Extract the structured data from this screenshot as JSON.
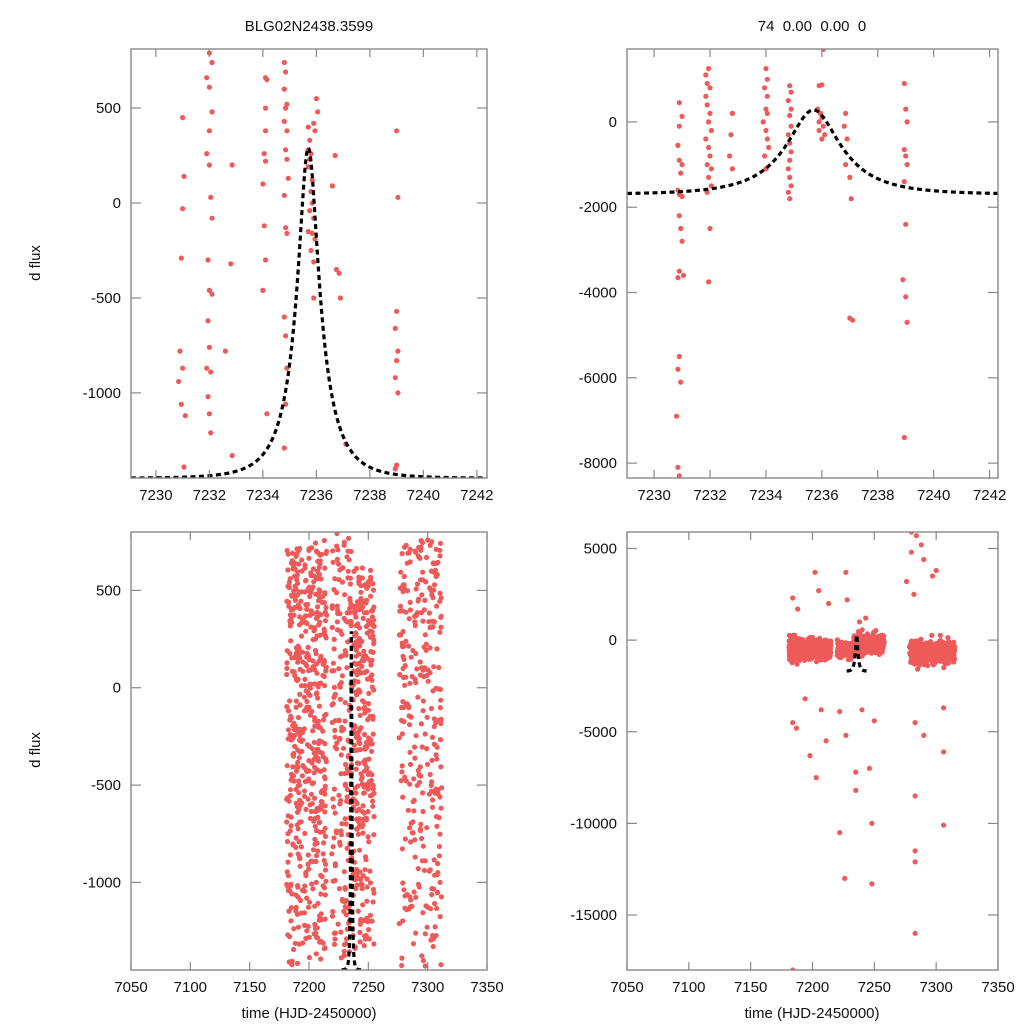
{
  "colors": {
    "points": "#ee5a5a",
    "model": "#000000",
    "frame": "#888888"
  },
  "chart_data": [
    {
      "id": "top-left",
      "type": "scatter",
      "title": "BLG02N2438.3599",
      "xlabel": "",
      "ylabel": "d flux",
      "xlim": [
        7229.07,
        7242.38
      ],
      "ylim": [
        -1448,
        811
      ],
      "xticks": [
        7230,
        7232,
        7234,
        7236,
        7238,
        7240,
        7242
      ],
      "yticks": [
        500,
        0,
        -500,
        -1000
      ],
      "model": {
        "type": "paczynski",
        "t0": 7235.7,
        "u0": 0.3,
        "tE": 1.3,
        "peak": 290,
        "base": -1450
      },
      "points": [
        [
          7231.0,
          450
        ],
        [
          7231.05,
          140
        ],
        [
          7231.0,
          -30
        ],
        [
          7230.95,
          -290
        ],
        [
          7230.9,
          -780
        ],
        [
          7230.85,
          -940
        ],
        [
          7230.95,
          -1060
        ],
        [
          7231.1,
          -1120
        ],
        [
          7231.0,
          -870
        ],
        [
          7231.05,
          -1390
        ],
        [
          7232.0,
          790
        ],
        [
          7232.1,
          740
        ],
        [
          7231.9,
          660
        ],
        [
          7232.0,
          610
        ],
        [
          7232.1,
          480
        ],
        [
          7232.0,
          380
        ],
        [
          7231.9,
          260
        ],
        [
          7232.0,
          200
        ],
        [
          7232.05,
          30
        ],
        [
          7232.1,
          -80
        ],
        [
          7231.95,
          -300
        ],
        [
          7232.0,
          -460
        ],
        [
          7232.1,
          -480
        ],
        [
          7231.95,
          -620
        ],
        [
          7232.0,
          -760
        ],
        [
          7232.05,
          -890
        ],
        [
          7231.95,
          -1020
        ],
        [
          7232.0,
          -1110
        ],
        [
          7232.05,
          -1210
        ],
        [
          7231.9,
          -870
        ],
        [
          7232.85,
          200
        ],
        [
          7232.8,
          -320
        ],
        [
          7232.85,
          -1330
        ],
        [
          7232.6,
          -780
        ],
        [
          7234.1,
          660
        ],
        [
          7234.15,
          650
        ],
        [
          7234.1,
          500
        ],
        [
          7234.1,
          380
        ],
        [
          7234.05,
          260
        ],
        [
          7234.1,
          220
        ],
        [
          7234.0,
          100
        ],
        [
          7234.05,
          -120
        ],
        [
          7234.1,
          -300
        ],
        [
          7234.0,
          -460
        ],
        [
          7234.15,
          -1110
        ],
        [
          7234.8,
          740
        ],
        [
          7234.85,
          690
        ],
        [
          7234.8,
          600
        ],
        [
          7234.9,
          520
        ],
        [
          7234.85,
          500
        ],
        [
          7234.8,
          430
        ],
        [
          7234.9,
          380
        ],
        [
          7234.85,
          280
        ],
        [
          7234.9,
          230
        ],
        [
          7234.95,
          130
        ],
        [
          7234.8,
          40
        ],
        [
          7234.85,
          -130
        ],
        [
          7234.9,
          -160
        ],
        [
          7234.8,
          -600
        ],
        [
          7234.85,
          -700
        ],
        [
          7234.9,
          -870
        ],
        [
          7234.85,
          -1060
        ],
        [
          7234.8,
          -1290
        ],
        [
          7235.7,
          400
        ],
        [
          7235.75,
          330
        ],
        [
          7235.7,
          280
        ],
        [
          7235.8,
          260
        ],
        [
          7235.75,
          230
        ],
        [
          7235.7,
          190
        ],
        [
          7235.85,
          120
        ],
        [
          7235.8,
          60
        ],
        [
          7235.75,
          -40
        ],
        [
          7235.9,
          -80
        ],
        [
          7235.85,
          -160
        ],
        [
          7235.7,
          -150
        ],
        [
          7235.8,
          -250
        ],
        [
          7235.9,
          -310
        ],
        [
          7236.0,
          550
        ],
        [
          7236.05,
          480
        ],
        [
          7235.9,
          420
        ],
        [
          7235.95,
          380
        ],
        [
          7235.85,
          0
        ],
        [
          7235.95,
          -190
        ],
        [
          7235.9,
          -500
        ],
        [
          7236.7,
          250
        ],
        [
          7236.75,
          -350
        ],
        [
          7236.85,
          -370
        ],
        [
          7236.9,
          -500
        ],
        [
          7237.1,
          -1270
        ],
        [
          7236.6,
          90
        ],
        [
          7239.0,
          380
        ],
        [
          7239.05,
          30
        ],
        [
          7239.0,
          -570
        ],
        [
          7238.95,
          -660
        ],
        [
          7239.05,
          -780
        ],
        [
          7239.0,
          -830
        ],
        [
          7238.95,
          -920
        ],
        [
          7239.05,
          -1000
        ],
        [
          7238.95,
          -1400
        ],
        [
          7239.0,
          -1380
        ]
      ]
    },
    {
      "id": "top-right",
      "type": "scatter",
      "title": "74  0.00  0.00  0",
      "xlabel": "",
      "ylabel": "",
      "xlim": [
        7229.03,
        7242.3
      ],
      "ylim": [
        -8350,
        1710
      ],
      "xticks": [
        7230,
        7232,
        7234,
        7236,
        7238,
        7240,
        7242
      ],
      "yticks": [
        0,
        -2000,
        -4000,
        -6000,
        -8000
      ],
      "model": {
        "type": "paczynski",
        "t0": 7235.7,
        "u0": 0.45,
        "tE": 2.2,
        "peak": 280,
        "base": -1700
      },
      "points": [
        [
          7230.9,
          450
        ],
        [
          7231.0,
          130
        ],
        [
          7230.9,
          -100
        ],
        [
          7230.85,
          -550
        ],
        [
          7230.9,
          -900
        ],
        [
          7231.0,
          -1000
        ],
        [
          7230.95,
          -1200
        ],
        [
          7230.85,
          -1600
        ],
        [
          7230.9,
          -1700
        ],
        [
          7231.0,
          -1750
        ],
        [
          7230.9,
          -2200
        ],
        [
          7230.95,
          -2500
        ],
        [
          7231.0,
          -2800
        ],
        [
          7230.9,
          -3500
        ],
        [
          7231.05,
          -3600
        ],
        [
          7230.85,
          -3650
        ],
        [
          7230.9,
          -5500
        ],
        [
          7230.85,
          -5800
        ],
        [
          7230.95,
          -6100
        ],
        [
          7230.8,
          -6900
        ],
        [
          7230.85,
          -8100
        ],
        [
          7230.9,
          -8300
        ],
        [
          7231.85,
          1100
        ],
        [
          7231.95,
          1250
        ],
        [
          7231.9,
          900
        ],
        [
          7232.0,
          800
        ],
        [
          7231.85,
          600
        ],
        [
          7231.9,
          400
        ],
        [
          7232.0,
          200
        ],
        [
          7231.95,
          0
        ],
        [
          7232.05,
          -200
        ],
        [
          7231.85,
          -400
        ],
        [
          7231.95,
          -600
        ],
        [
          7232.0,
          -800
        ],
        [
          7231.9,
          -1000
        ],
        [
          7232.05,
          -1100
        ],
        [
          7231.95,
          -1300
        ],
        [
          7232.05,
          -1500
        ],
        [
          7232.0,
          -2500
        ],
        [
          7231.95,
          -3750
        ],
        [
          7231.9,
          -1650
        ],
        [
          7232.8,
          200
        ],
        [
          7232.75,
          -300
        ],
        [
          7232.7,
          -800
        ],
        [
          7232.8,
          -1100
        ],
        [
          7234.0,
          1250
        ],
        [
          7234.05,
          1000
        ],
        [
          7233.95,
          800
        ],
        [
          7234.05,
          600
        ],
        [
          7234.0,
          300
        ],
        [
          7234.05,
          200
        ],
        [
          7233.9,
          0
        ],
        [
          7234.0,
          -200
        ],
        [
          7234.05,
          -400
        ],
        [
          7234.1,
          -600
        ],
        [
          7233.95,
          -800
        ],
        [
          7234.0,
          -1100
        ],
        [
          7234.85,
          850
        ],
        [
          7234.9,
          700
        ],
        [
          7234.8,
          500
        ],
        [
          7234.9,
          300
        ],
        [
          7234.85,
          150
        ],
        [
          7234.9,
          -100
        ],
        [
          7234.8,
          -300
        ],
        [
          7234.85,
          -500
        ],
        [
          7234.9,
          -700
        ],
        [
          7234.85,
          -900
        ],
        [
          7234.8,
          -1100
        ],
        [
          7234.85,
          -1300
        ],
        [
          7234.9,
          -1500
        ],
        [
          7234.8,
          -1650
        ],
        [
          7234.85,
          -1800
        ],
        [
          7235.9,
          850
        ],
        [
          7236.0,
          870
        ],
        [
          7235.85,
          300
        ],
        [
          7235.95,
          200
        ],
        [
          7236.0,
          100
        ],
        [
          7235.9,
          0
        ],
        [
          7236.05,
          -100
        ],
        [
          7235.9,
          -200
        ],
        [
          7236.1,
          -300
        ],
        [
          7236.05,
          1700
        ],
        [
          7236.0,
          -400
        ],
        [
          7236.85,
          200
        ],
        [
          7236.8,
          -100
        ],
        [
          7236.9,
          -400
        ],
        [
          7236.85,
          -1000
        ],
        [
          7237.0,
          -1300
        ],
        [
          7237.05,
          -1800
        ],
        [
          7237.0,
          -4600
        ],
        [
          7237.1,
          -4650
        ],
        [
          7238.95,
          900
        ],
        [
          7239.0,
          300
        ],
        [
          7239.05,
          0
        ],
        [
          7238.95,
          -650
        ],
        [
          7239.0,
          -800
        ],
        [
          7239.05,
          -1000
        ],
        [
          7238.95,
          -1400
        ],
        [
          7239.0,
          -2400
        ],
        [
          7238.9,
          -3700
        ],
        [
          7239.0,
          -4100
        ],
        [
          7239.05,
          -4700
        ],
        [
          7238.95,
          -7400
        ]
      ]
    },
    {
      "id": "bottom-left",
      "type": "scatter",
      "title": "",
      "xlabel": "time (HJD-2450000)",
      "ylabel": "d flux",
      "xlim": [
        7050,
        7350
      ],
      "ylim": [
        -1450,
        800
      ],
      "xticks": [
        7050,
        7100,
        7150,
        7200,
        7250,
        7300,
        7350
      ],
      "yticks": [
        500,
        0,
        -500,
        -1000
      ],
      "model": {
        "type": "paczynski",
        "t0": 7235.7,
        "u0": 0.3,
        "tE": 1.3,
        "peak": 290,
        "base": -1450
      },
      "point_groups": [
        {
          "x_range": [
            7181,
            7195
          ],
          "y_range": [
            -1450,
            720
          ],
          "count": 230
        },
        {
          "x_range": [
            7196,
            7215
          ],
          "y_range": [
            -1400,
            760
          ],
          "count": 300
        },
        {
          "x_range": [
            7219,
            7236
          ],
          "y_range": [
            -1400,
            800
          ],
          "count": 180
        },
        {
          "x_range": [
            7237,
            7255
          ],
          "y_range": [
            -1350,
            620
          ],
          "count": 280
        },
        {
          "x_range": [
            7276,
            7312
          ],
          "y_range": [
            -1450,
            760
          ],
          "count": 300
        }
      ]
    },
    {
      "id": "bottom-right",
      "type": "scatter",
      "title": "",
      "xlabel": "time (HJD-2450000)",
      "ylabel": "",
      "xlim": [
        7050,
        7350
      ],
      "ylim": [
        -18000,
        5900
      ],
      "xticks": [
        7050,
        7100,
        7150,
        7200,
        7250,
        7300,
        7350
      ],
      "yticks": [
        5000,
        0,
        -5000,
        -10000,
        -15000
      ],
      "model": {
        "type": "paczynski",
        "t0": 7235.7,
        "u0": 0.45,
        "tE": 2.2,
        "peak": 280,
        "base": -1700
      },
      "point_groups": [
        {
          "x_range": [
            7181,
            7190
          ],
          "y_range": [
            -1800,
            700
          ],
          "count": 200
        },
        {
          "x_range": [
            7192,
            7215
          ],
          "y_range": [
            -1600,
            600
          ],
          "count": 260
        },
        {
          "x_range": [
            7220,
            7232
          ],
          "y_range": [
            -1500,
            400
          ],
          "count": 120
        },
        {
          "x_range": [
            7233,
            7258
          ],
          "y_range": [
            -1200,
            800
          ],
          "count": 260
        },
        {
          "x_range": [
            7278,
            7315
          ],
          "y_range": [
            -2000,
            600
          ],
          "count": 300
        }
      ],
      "outliers": [
        [
          7184,
          2300
        ],
        [
          7188,
          1700
        ],
        [
          7202,
          3700
        ],
        [
          7205,
          2700
        ],
        [
          7213,
          2000
        ],
        [
          7227,
          3700
        ],
        [
          7228,
          2200
        ],
        [
          7238,
          1000
        ],
        [
          7243,
          1200
        ],
        [
          7184,
          -4500
        ],
        [
          7187,
          -4800
        ],
        [
          7194,
          -3200
        ],
        [
          7198,
          -6300
        ],
        [
          7203,
          -7500
        ],
        [
          7207,
          -3800
        ],
        [
          7211,
          -5500
        ],
        [
          7222,
          -3900
        ],
        [
          7222,
          -10500
        ],
        [
          7226,
          -13000
        ],
        [
          7227,
          -5200
        ],
        [
          7235,
          -7200
        ],
        [
          7235,
          -8200
        ],
        [
          7240,
          -3800
        ],
        [
          7246,
          -7000
        ],
        [
          7248,
          -10000
        ],
        [
          7248,
          -13300
        ],
        [
          7250,
          -4400
        ],
        [
          7280,
          5900
        ],
        [
          7284,
          5700
        ],
        [
          7288,
          5200
        ],
        [
          7290,
          4400
        ],
        [
          7280,
          4800
        ],
        [
          7276,
          3200
        ],
        [
          7282,
          2500
        ],
        [
          7297,
          3500
        ],
        [
          7300,
          3800
        ],
        [
          7283,
          -4500
        ],
        [
          7283,
          -8500
        ],
        [
          7283,
          -11500
        ],
        [
          7283,
          -12100
        ],
        [
          7283,
          -16000
        ],
        [
          7290,
          -5200
        ],
        [
          7306,
          -3700
        ],
        [
          7306,
          -6100
        ],
        [
          7306,
          -10100
        ],
        [
          7184,
          -18000
        ]
      ]
    }
  ]
}
